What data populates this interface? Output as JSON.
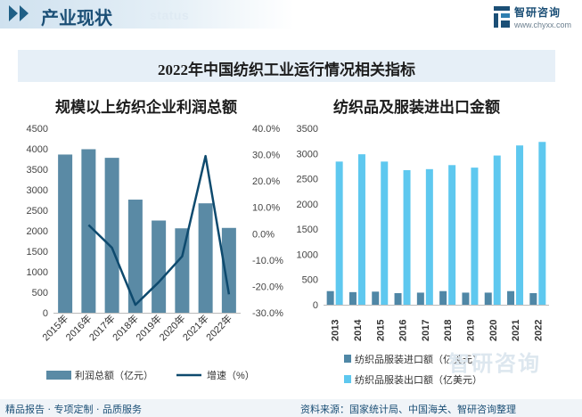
{
  "header": {
    "title": "产业现状",
    "watermark": "status",
    "logo_name": "智研咨询",
    "logo_url": "www.chyxx.com"
  },
  "banner": {
    "title": "2022年中国纺织工业运行情况相关指标"
  },
  "colors": {
    "bar_left": "#5a8aa5",
    "line": "#0e4a6e",
    "bar_import": "#4f87a6",
    "bar_export": "#5ec8ef",
    "brand": "#1b4f76"
  },
  "chart_data": [
    {
      "type": "bar",
      "title": "规模以上纺织企业利润总额",
      "categories": [
        "2015年",
        "2016年",
        "2017年",
        "2018年",
        "2019年",
        "2020年",
        "2021年",
        "2022年"
      ],
      "series": [
        {
          "name": "利润总额（亿元）",
          "type": "bar",
          "axis": "left",
          "values": [
            3860,
            3990,
            3780,
            2760,
            2250,
            2060,
            2670,
            2070
          ]
        },
        {
          "name": "增速（%）",
          "type": "line",
          "axis": "right",
          "values": [
            null,
            3.3,
            -5.3,
            -27.0,
            -18.4,
            -8.6,
            29.5,
            -23.0
          ]
        }
      ],
      "y_left": {
        "ylim": [
          0,
          4500
        ],
        "ticks": [
          "0",
          "500",
          "1000",
          "1500",
          "2000",
          "2500",
          "3000",
          "3500",
          "4000",
          "4500"
        ]
      },
      "y_right": {
        "ylim": [
          -30,
          40
        ],
        "ticks": [
          "-30.0%",
          "-20.0%",
          "-10.0%",
          "0.0%",
          "10.0%",
          "20.0%",
          "30.0%",
          "40.0%"
        ]
      },
      "legend": "bottom"
    },
    {
      "type": "bar",
      "title": "纺织品及服装进出口金额",
      "categories": [
        "2013",
        "2014",
        "2015",
        "2016",
        "2017",
        "2018",
        "2019",
        "2020",
        "2021",
        "2022"
      ],
      "series": [
        {
          "name": "纺织品服装进口额（亿美元）",
          "values": [
            270,
            250,
            260,
            230,
            240,
            270,
            240,
            240,
            270,
            230
          ]
        },
        {
          "name": "纺织品服装出口额（亿美元）",
          "values": [
            2840,
            2985,
            2840,
            2670,
            2690,
            2770,
            2720,
            2960,
            3160,
            3230
          ]
        }
      ],
      "ylim": [
        0,
        3500
      ],
      "ticks": [
        "0",
        "500",
        "1000",
        "1500",
        "2000",
        "2500",
        "3000",
        "3500"
      ],
      "legend": "bottom"
    }
  ],
  "footer": {
    "left": "精品报告 · 专项定制 · 品质服务",
    "right": "资料来源：国家统计局、中国海关、智研咨询整理",
    "watermark": "智研咨询"
  }
}
